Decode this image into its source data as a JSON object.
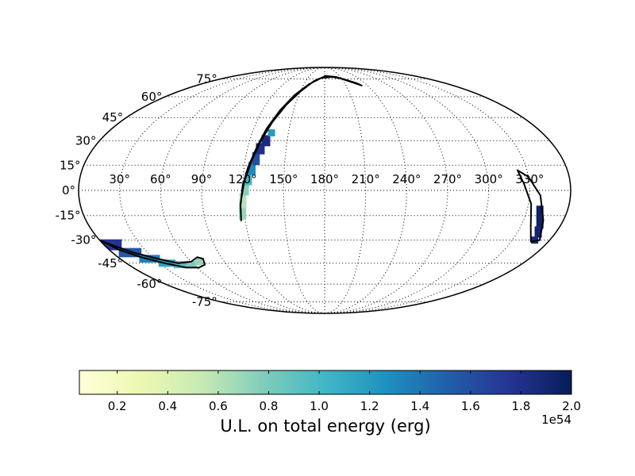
{
  "chart_data": {
    "type": "heatmap",
    "projection": "mollweide",
    "grid": true,
    "lon_ticks": [
      "30°",
      "60°",
      "90°",
      "120°",
      "150°",
      "180°",
      "210°",
      "240°",
      "270°",
      "300°",
      "330°"
    ],
    "lat_ticks": [
      "75°",
      "60°",
      "45°",
      "30°",
      "15°",
      "0°",
      "-15°",
      "-30°",
      "-45°",
      "-60°",
      "-75°"
    ],
    "colorbar": {
      "label": "U.L. on total energy (erg)",
      "ticks": [
        "0.2",
        "0.4",
        "0.6",
        "0.8",
        "1.0",
        "1.2",
        "1.4",
        "1.6",
        "1.8",
        "2.0"
      ],
      "tick_values": [
        0.2,
        0.4,
        0.6,
        0.8,
        1.0,
        1.2,
        1.4,
        1.6,
        1.8,
        2.0
      ],
      "range": [
        0.05,
        2.0
      ],
      "offset_text": "1e54",
      "colormap": "YlGnBu",
      "colors": [
        "#ffffd9",
        "#edf8b1",
        "#c7e9b4",
        "#7fcdbb",
        "#41b6c4",
        "#1d91c0",
        "#225ea8",
        "#253494",
        "#081d58"
      ]
    },
    "regions": [
      {
        "name": "upper arc",
        "outline": [
          [
            117,
            -18
          ],
          [
            118,
            -8
          ],
          [
            121,
            5
          ],
          [
            125,
            18
          ],
          [
            129,
            30
          ],
          [
            134,
            42
          ],
          [
            141,
            54
          ],
          [
            150,
            64
          ],
          [
            163,
            73
          ],
          [
            182,
            78
          ],
          [
            202,
            77
          ],
          [
            218,
            73
          ],
          [
            232,
            69
          ],
          [
            228,
            71
          ],
          [
            212,
            75
          ],
          [
            195,
            77
          ],
          [
            174,
            76
          ],
          [
            157,
            70
          ],
          [
            145,
            61
          ],
          [
            137,
            50
          ],
          [
            131,
            38
          ],
          [
            127,
            26
          ],
          [
            123,
            14
          ],
          [
            120,
            3
          ],
          [
            118,
            -9
          ]
        ],
        "cells": [
          {
            "lon": 119,
            "lat": -13,
            "value": 0.7
          },
          {
            "lon": 120,
            "lat": -6,
            "value": 0.6
          },
          {
            "lon": 122,
            "lat": 1,
            "value": 0.75
          },
          {
            "lon": 124,
            "lat": 7,
            "value": 1.0
          },
          {
            "lon": 126,
            "lat": 13,
            "value": 1.3
          },
          {
            "lon": 128,
            "lat": 19,
            "value": 1.6
          },
          {
            "lon": 130,
            "lat": 25,
            "value": 1.8
          },
          {
            "lon": 133,
            "lat": 30,
            "value": 1.85
          },
          {
            "lon": 136,
            "lat": 35,
            "value": 1.2
          }
        ]
      },
      {
        "name": "lower left arc",
        "outline": [
          [
            0,
            -30
          ],
          [
            8,
            -36
          ],
          [
            20,
            -41
          ],
          [
            35,
            -45
          ],
          [
            50,
            -48
          ],
          [
            62,
            -48
          ],
          [
            70,
            -46
          ],
          [
            73,
            -42
          ],
          [
            69,
            -41
          ],
          [
            60,
            -44
          ],
          [
            47,
            -45
          ],
          [
            33,
            -42
          ],
          [
            18,
            -38
          ],
          [
            6,
            -33
          ]
        ],
        "cells": [
          {
            "lon": 5,
            "lat": -33,
            "value": 1.75
          },
          {
            "lon": 15,
            "lat": -38,
            "value": 1.55
          },
          {
            "lon": 26,
            "lat": -42,
            "value": 1.35
          },
          {
            "lon": 37,
            "lat": -45,
            "value": 1.15
          },
          {
            "lon": 48,
            "lat": -46,
            "value": 0.95
          },
          {
            "lon": 58,
            "lat": -46,
            "value": 0.8
          },
          {
            "lon": 67,
            "lat": -44,
            "value": 0.7
          }
        ]
      },
      {
        "name": "right arc",
        "outline": [
          [
            323,
            12
          ],
          [
            330,
            8
          ],
          [
            338,
            -3
          ],
          [
            345,
            -18
          ],
          [
            352,
            -30
          ],
          [
            346,
            -31
          ],
          [
            338,
            -22
          ],
          [
            332,
            -8
          ],
          [
            326,
            4
          ]
        ],
        "cells": [
          {
            "lon": 340,
            "lat": -13,
            "value": 1.95
          },
          {
            "lon": 343,
            "lat": -19,
            "value": 1.95
          },
          {
            "lon": 346,
            "lat": -25,
            "value": 1.9
          },
          {
            "lon": 348,
            "lat": -30,
            "value": 1.85
          }
        ]
      }
    ]
  }
}
